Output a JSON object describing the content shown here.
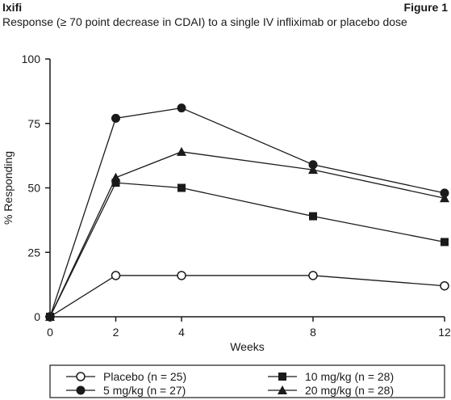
{
  "header": {
    "drug": "Ixifi",
    "figure": "Figure 1",
    "subtitle": "Response (≥ 70 point decrease in CDAI) to a single IV infliximab or placebo dose"
  },
  "chart_data": {
    "type": "line",
    "title": "Response (≥ 70 point decrease in CDAI) to a single IV infliximab or placebo dose",
    "xlabel": "Weeks",
    "ylabel": "% Responding",
    "x": [
      0,
      2,
      4,
      8,
      12
    ],
    "xticks": [
      0,
      2,
      4,
      8,
      12
    ],
    "yticks": [
      0,
      25,
      50,
      75,
      100
    ],
    "xlim": [
      0,
      12
    ],
    "ylim": [
      0,
      100
    ],
    "grid": false,
    "legend_position": "bottom",
    "series": [
      {
        "name": "Placebo (n = 25)",
        "marker": "open-circle",
        "values": [
          0,
          16,
          16,
          16,
          12
        ]
      },
      {
        "name": "5 mg/kg (n = 27)",
        "marker": "filled-circle",
        "values": [
          0,
          77,
          81,
          59,
          48
        ]
      },
      {
        "name": "10 mg/kg (n = 28)",
        "marker": "filled-square",
        "values": [
          0,
          52,
          50,
          39,
          29
        ]
      },
      {
        "name": "20 mg/kg (n = 28)",
        "marker": "filled-triangle",
        "values": [
          0,
          54,
          64,
          57,
          46
        ]
      }
    ]
  }
}
